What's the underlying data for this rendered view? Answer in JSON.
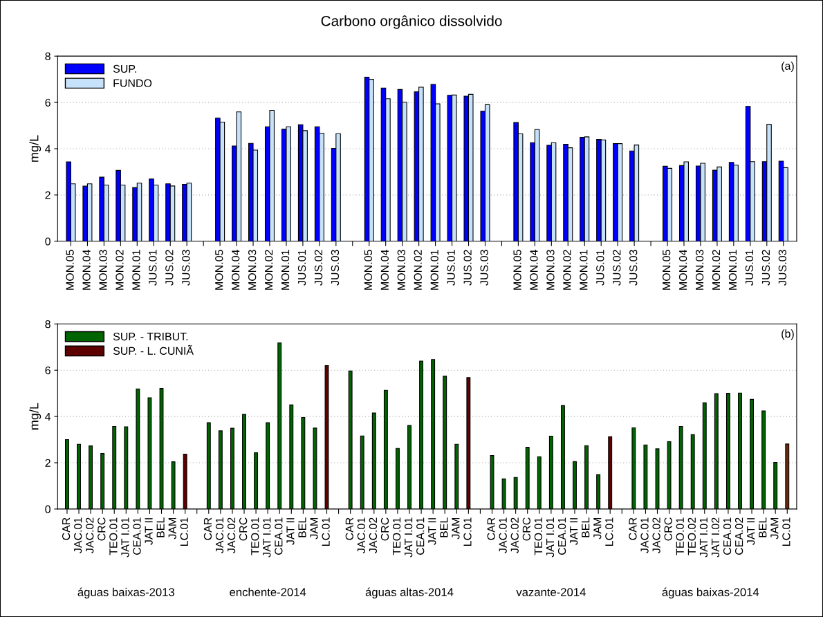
{
  "chart_data": [
    {
      "type": "bar",
      "title": "Carbono orgânico dissolvido",
      "ylabel": "mg/L",
      "ylim": [
        0,
        8
      ],
      "yticks": [
        0,
        2,
        4,
        6,
        8
      ],
      "grid": "y",
      "legend": "top left",
      "annotations": [
        "(a)"
      ],
      "categories": [
        "MON.05",
        "MON.04",
        "MON.03",
        "MON.02",
        "MON.01",
        "JUS.01",
        "JUS.02",
        "JUS.03",
        null,
        "MON.05",
        "MON.04",
        "MON.03",
        "MON.02",
        "MON.01",
        "JUS.01",
        "JUS.02",
        "JUS.03",
        null,
        "MON.05",
        "MON.04",
        "MON.03",
        "MON.02",
        "MON.01",
        "JUS.01",
        "JUS.02",
        "JUS.03",
        null,
        "MON.05",
        "MON.04",
        "MON.03",
        "MON.02",
        "MON.01",
        "JUS.01",
        "JUS.02",
        "JUS.03",
        null,
        "MON.05",
        "MON.04",
        "MON.03",
        "MON.02",
        "MON.01",
        "JUS.01",
        "JUS.02",
        "JUS.03"
      ],
      "series": [
        {
          "name": "SUP.",
          "color": "#0000ff",
          "values": [
            3.43,
            2.38,
            2.77,
            3.06,
            2.32,
            2.69,
            2.48,
            2.46,
            null,
            5.32,
            4.12,
            4.23,
            4.95,
            4.84,
            5.04,
            4.95,
            4.01,
            null,
            7.09,
            6.62,
            6.56,
            6.46,
            6.78,
            6.31,
            6.27,
            5.62,
            null,
            5.13,
            4.26,
            4.15,
            4.19,
            4.49,
            4.4,
            4.22,
            3.9,
            null,
            3.24,
            3.27,
            3.25,
            3.07,
            3.41,
            5.83,
            3.44,
            3.46
          ]
        },
        {
          "name": "FUNDO",
          "color": "#c6e2fa",
          "values": [
            2.48,
            2.48,
            2.43,
            2.43,
            2.51,
            2.43,
            2.39,
            2.51,
            null,
            5.15,
            5.59,
            3.94,
            5.66,
            4.95,
            4.78,
            4.67,
            4.65,
            null,
            7.0,
            6.16,
            6.01,
            6.66,
            5.94,
            6.32,
            6.35,
            5.9,
            null,
            4.64,
            4.83,
            4.26,
            4.04,
            4.51,
            4.38,
            4.22,
            4.16,
            null,
            3.15,
            3.43,
            3.37,
            3.21,
            3.29,
            3.44,
            5.05,
            3.18
          ]
        }
      ]
    },
    {
      "type": "bar",
      "ylabel": "mg/L",
      "ylim": [
        0,
        8
      ],
      "yticks": [
        0,
        2,
        4,
        6,
        8
      ],
      "grid": "y",
      "legend": "top left",
      "annotations": [
        "(b)",
        "águas baixas-2013",
        "enchente-2014",
        "águas altas-2014",
        "vazante-2014",
        "águas baixas-2014"
      ],
      "categories": [
        "CAR",
        "JAC.01",
        "JAC.02",
        "CRC",
        "TEO.01",
        "JAT I.01",
        "CEA.01",
        "JAT II",
        "BEL",
        "JAM",
        "LC.01",
        null,
        "CAR",
        "JAC.01",
        "JAC.02",
        "CRC",
        "TEO.01",
        "JAT I.01",
        "CEA.01",
        "JAT II",
        "BEL",
        "JAM",
        "LC.01",
        null,
        "CAR",
        "JAC.01",
        "JAC.02",
        "CRC",
        "TEO.01",
        "JAT I.01",
        "CEA.01",
        "JAT II",
        "BEL",
        "JAM",
        "LC.01",
        null,
        "CAR",
        "JAC.01",
        "JAC.02",
        "CRC",
        "TEO.01",
        "JAT I.01",
        "CEA.01",
        "JAT II",
        "BEL",
        "JAM",
        "LC.01",
        null,
        "CAR",
        "JAC.01",
        "JAC.02",
        "CRC",
        "TEO.01",
        "TEO.02",
        "JAT I.01",
        "JAT I.02",
        "CEA.01",
        "CEA.02",
        "JAT II",
        "BEL",
        "JAM",
        "LC.01"
      ],
      "series": [
        {
          "name": "SUP. - TRIBUT.",
          "color": "#006400",
          "values": [
            3.0,
            2.8,
            2.73,
            2.4,
            3.57,
            3.55,
            5.19,
            4.81,
            5.21,
            2.04,
            null,
            null,
            3.73,
            3.38,
            3.49,
            4.09,
            2.43,
            3.73,
            7.18,
            4.5,
            3.96,
            3.5,
            null,
            null,
            5.97,
            3.16,
            4.15,
            5.13,
            2.62,
            3.61,
            6.39,
            6.46,
            5.74,
            2.8,
            null,
            null,
            2.31,
            1.3,
            1.36,
            2.67,
            2.26,
            3.15,
            4.47,
            2.05,
            2.74,
            1.49,
            null,
            null,
            3.51,
            2.77,
            2.6,
            2.91,
            3.57,
            3.22,
            4.59,
            4.99,
            5.0,
            5.01,
            4.74,
            4.24,
            2.01,
            null
          ]
        },
        {
          "name": "SUP. - L. CUNIÃ",
          "color": "#5c0000",
          "colors": [
            null,
            null,
            null,
            null,
            null,
            null,
            null,
            null,
            null,
            null,
            "#5c0000",
            null,
            null,
            null,
            null,
            null,
            null,
            null,
            null,
            null,
            null,
            null,
            "#5c0000",
            null,
            null,
            null,
            null,
            null,
            null,
            null,
            null,
            null,
            null,
            null,
            "#5c0000",
            null,
            null,
            null,
            null,
            null,
            null,
            null,
            null,
            null,
            null,
            null,
            "#5c0000",
            null,
            null,
            null,
            null,
            null,
            null,
            null,
            null,
            null,
            null,
            null,
            null,
            null,
            null,
            "#6b2a0a"
          ],
          "values": [
            null,
            null,
            null,
            null,
            null,
            null,
            null,
            null,
            null,
            null,
            2.37,
            null,
            null,
            null,
            null,
            null,
            null,
            null,
            null,
            null,
            null,
            null,
            6.2,
            null,
            null,
            null,
            null,
            null,
            null,
            null,
            null,
            null,
            null,
            null,
            5.68,
            null,
            null,
            null,
            null,
            null,
            null,
            null,
            null,
            null,
            null,
            null,
            3.13,
            null,
            null,
            null,
            null,
            null,
            null,
            null,
            null,
            null,
            null,
            null,
            null,
            null,
            null,
            2.81
          ]
        }
      ]
    }
  ]
}
